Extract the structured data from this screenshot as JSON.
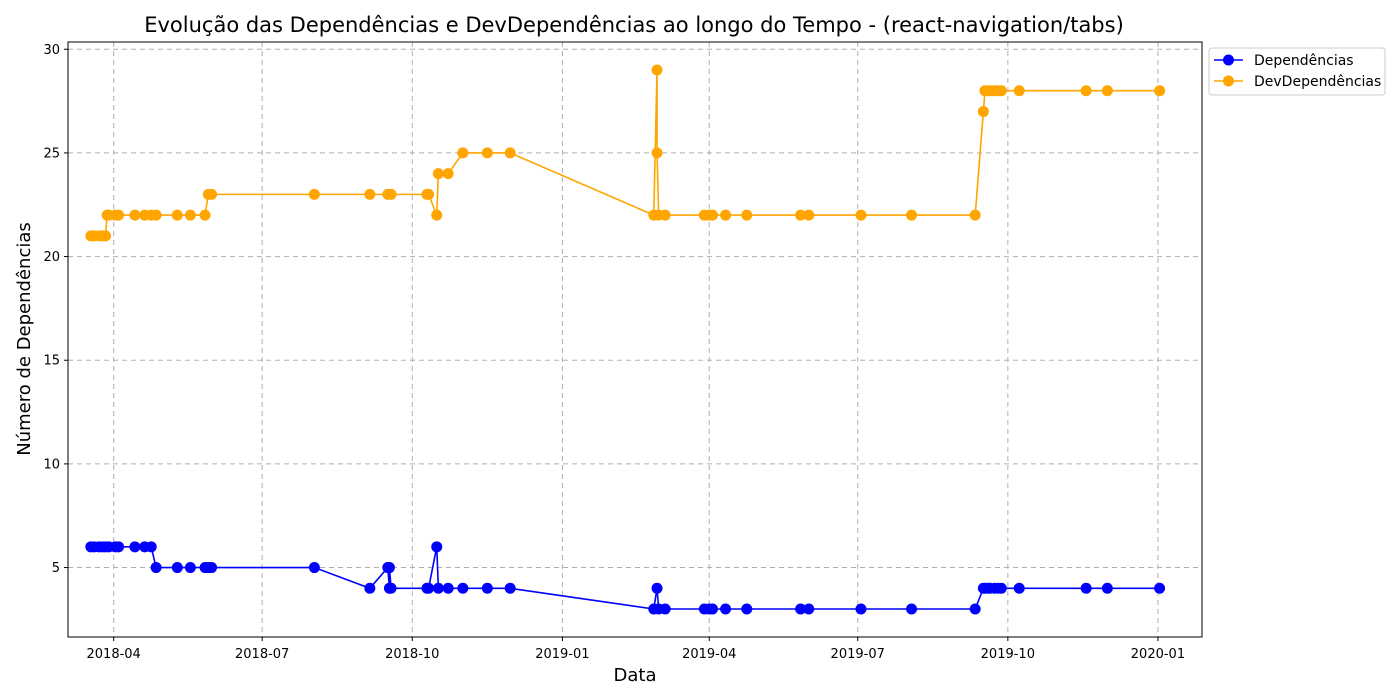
{
  "chart_data": {
    "type": "line",
    "title": "Evolução das Dependências e DevDependências ao longo do Tempo - (react-navigation/tabs)",
    "xlabel": "Data",
    "ylabel": "Número de Dependências",
    "xlim": [
      "2018-03-04",
      "2020-01-28"
    ],
    "ylim": [
      1.65,
      30.35
    ],
    "x_ticks": [
      {
        "date": "2018-04-01",
        "label": "2018-04"
      },
      {
        "date": "2018-07-01",
        "label": "2018-07"
      },
      {
        "date": "2018-10-01",
        "label": "2018-10"
      },
      {
        "date": "2019-01-01",
        "label": "2019-01"
      },
      {
        "date": "2019-04-01",
        "label": "2019-04"
      },
      {
        "date": "2019-07-01",
        "label": "2019-07"
      },
      {
        "date": "2019-10-01",
        "label": "2019-10"
      },
      {
        "date": "2020-01-01",
        "label": "2020-01"
      }
    ],
    "y_ticks": [
      5,
      10,
      15,
      20,
      25,
      30
    ],
    "grid": true,
    "legend_position": "outside top-right",
    "series": [
      {
        "name": "Dependências",
        "color": "#0000ff",
        "marker": "circle",
        "points": [
          {
            "x": "2018-03-18",
            "y": 6
          },
          {
            "x": "2018-03-20",
            "y": 6
          },
          {
            "x": "2018-03-23",
            "y": 6
          },
          {
            "x": "2018-03-25",
            "y": 6
          },
          {
            "x": "2018-03-27",
            "y": 6
          },
          {
            "x": "2018-03-29",
            "y": 6
          },
          {
            "x": "2018-04-02",
            "y": 6
          },
          {
            "x": "2018-04-04",
            "y": 6
          },
          {
            "x": "2018-04-14",
            "y": 6
          },
          {
            "x": "2018-04-20",
            "y": 6
          },
          {
            "x": "2018-04-24",
            "y": 6
          },
          {
            "x": "2018-04-27",
            "y": 5
          },
          {
            "x": "2018-05-10",
            "y": 5
          },
          {
            "x": "2018-05-18",
            "y": 5
          },
          {
            "x": "2018-05-27",
            "y": 5
          },
          {
            "x": "2018-05-29",
            "y": 5
          },
          {
            "x": "2018-05-31",
            "y": 5
          },
          {
            "x": "2018-08-02",
            "y": 5
          },
          {
            "x": "2018-09-05",
            "y": 4
          },
          {
            "x": "2018-09-16",
            "y": 5
          },
          {
            "x": "2018-09-17",
            "y": 4
          },
          {
            "x": "2018-09-17",
            "y": 5
          },
          {
            "x": "2018-09-18",
            "y": 4
          },
          {
            "x": "2018-10-10",
            "y": 4
          },
          {
            "x": "2018-10-11",
            "y": 4
          },
          {
            "x": "2018-10-16",
            "y": 6
          },
          {
            "x": "2018-10-17",
            "y": 4
          },
          {
            "x": "2018-10-23",
            "y": 4
          },
          {
            "x": "2018-11-01",
            "y": 4
          },
          {
            "x": "2018-11-16",
            "y": 4
          },
          {
            "x": "2018-11-30",
            "y": 4
          },
          {
            "x": "2019-02-26",
            "y": 3
          },
          {
            "x": "2019-02-28",
            "y": 4
          },
          {
            "x": "2019-03-01",
            "y": 3
          },
          {
            "x": "2019-03-05",
            "y": 3
          },
          {
            "x": "2019-03-29",
            "y": 3
          },
          {
            "x": "2019-04-01",
            "y": 3
          },
          {
            "x": "2019-04-03",
            "y": 3
          },
          {
            "x": "2019-04-11",
            "y": 3
          },
          {
            "x": "2019-04-24",
            "y": 3
          },
          {
            "x": "2019-05-27",
            "y": 3
          },
          {
            "x": "2019-06-01",
            "y": 3
          },
          {
            "x": "2019-07-03",
            "y": 3
          },
          {
            "x": "2019-08-03",
            "y": 3
          },
          {
            "x": "2019-09-11",
            "y": 3
          },
          {
            "x": "2019-09-16",
            "y": 4
          },
          {
            "x": "2019-09-17",
            "y": 4
          },
          {
            "x": "2019-09-19",
            "y": 4
          },
          {
            "x": "2019-09-20",
            "y": 4
          },
          {
            "x": "2019-09-23",
            "y": 4
          },
          {
            "x": "2019-09-25",
            "y": 4
          },
          {
            "x": "2019-09-27",
            "y": 4
          },
          {
            "x": "2019-10-08",
            "y": 4
          },
          {
            "x": "2019-11-18",
            "y": 4
          },
          {
            "x": "2019-12-01",
            "y": 4
          },
          {
            "x": "2020-01-02",
            "y": 4
          }
        ]
      },
      {
        "name": "DevDependências",
        "color": "#ffa500",
        "marker": "circle",
        "points": [
          {
            "x": "2018-03-18",
            "y": 21
          },
          {
            "x": "2018-03-20",
            "y": 21
          },
          {
            "x": "2018-03-23",
            "y": 21
          },
          {
            "x": "2018-03-25",
            "y": 21
          },
          {
            "x": "2018-03-27",
            "y": 21
          },
          {
            "x": "2018-03-28",
            "y": 22
          },
          {
            "x": "2018-03-29",
            "y": 22
          },
          {
            "x": "2018-04-02",
            "y": 22
          },
          {
            "x": "2018-04-04",
            "y": 22
          },
          {
            "x": "2018-04-14",
            "y": 22
          },
          {
            "x": "2018-04-20",
            "y": 22
          },
          {
            "x": "2018-04-24",
            "y": 22
          },
          {
            "x": "2018-04-27",
            "y": 22
          },
          {
            "x": "2018-05-10",
            "y": 22
          },
          {
            "x": "2018-05-18",
            "y": 22
          },
          {
            "x": "2018-05-27",
            "y": 22
          },
          {
            "x": "2018-05-29",
            "y": 23
          },
          {
            "x": "2018-05-31",
            "y": 23
          },
          {
            "x": "2018-08-02",
            "y": 23
          },
          {
            "x": "2018-09-05",
            "y": 23
          },
          {
            "x": "2018-09-16",
            "y": 23
          },
          {
            "x": "2018-09-18",
            "y": 23
          },
          {
            "x": "2018-10-10",
            "y": 23
          },
          {
            "x": "2018-10-11",
            "y": 23
          },
          {
            "x": "2018-10-16",
            "y": 22
          },
          {
            "x": "2018-10-17",
            "y": 24
          },
          {
            "x": "2018-10-23",
            "y": 24
          },
          {
            "x": "2018-11-01",
            "y": 25
          },
          {
            "x": "2018-11-16",
            "y": 25
          },
          {
            "x": "2018-11-30",
            "y": 25
          },
          {
            "x": "2019-02-26",
            "y": 22
          },
          {
            "x": "2019-02-28",
            "y": 29
          },
          {
            "x": "2019-02-28",
            "y": 25
          },
          {
            "x": "2019-03-01",
            "y": 22
          },
          {
            "x": "2019-03-05",
            "y": 22
          },
          {
            "x": "2019-03-29",
            "y": 22
          },
          {
            "x": "2019-04-01",
            "y": 22
          },
          {
            "x": "2019-04-03",
            "y": 22
          },
          {
            "x": "2019-04-11",
            "y": 22
          },
          {
            "x": "2019-04-24",
            "y": 22
          },
          {
            "x": "2019-05-27",
            "y": 22
          },
          {
            "x": "2019-06-01",
            "y": 22
          },
          {
            "x": "2019-07-03",
            "y": 22
          },
          {
            "x": "2019-08-03",
            "y": 22
          },
          {
            "x": "2019-09-11",
            "y": 22
          },
          {
            "x": "2019-09-16",
            "y": 27
          },
          {
            "x": "2019-09-17",
            "y": 28
          },
          {
            "x": "2019-09-19",
            "y": 28
          },
          {
            "x": "2019-09-20",
            "y": 28
          },
          {
            "x": "2019-09-23",
            "y": 28
          },
          {
            "x": "2019-09-25",
            "y": 28
          },
          {
            "x": "2019-09-27",
            "y": 28
          },
          {
            "x": "2019-10-08",
            "y": 28
          },
          {
            "x": "2019-11-18",
            "y": 28
          },
          {
            "x": "2019-12-01",
            "y": 28
          },
          {
            "x": "2020-01-02",
            "y": 28
          }
        ]
      }
    ]
  }
}
